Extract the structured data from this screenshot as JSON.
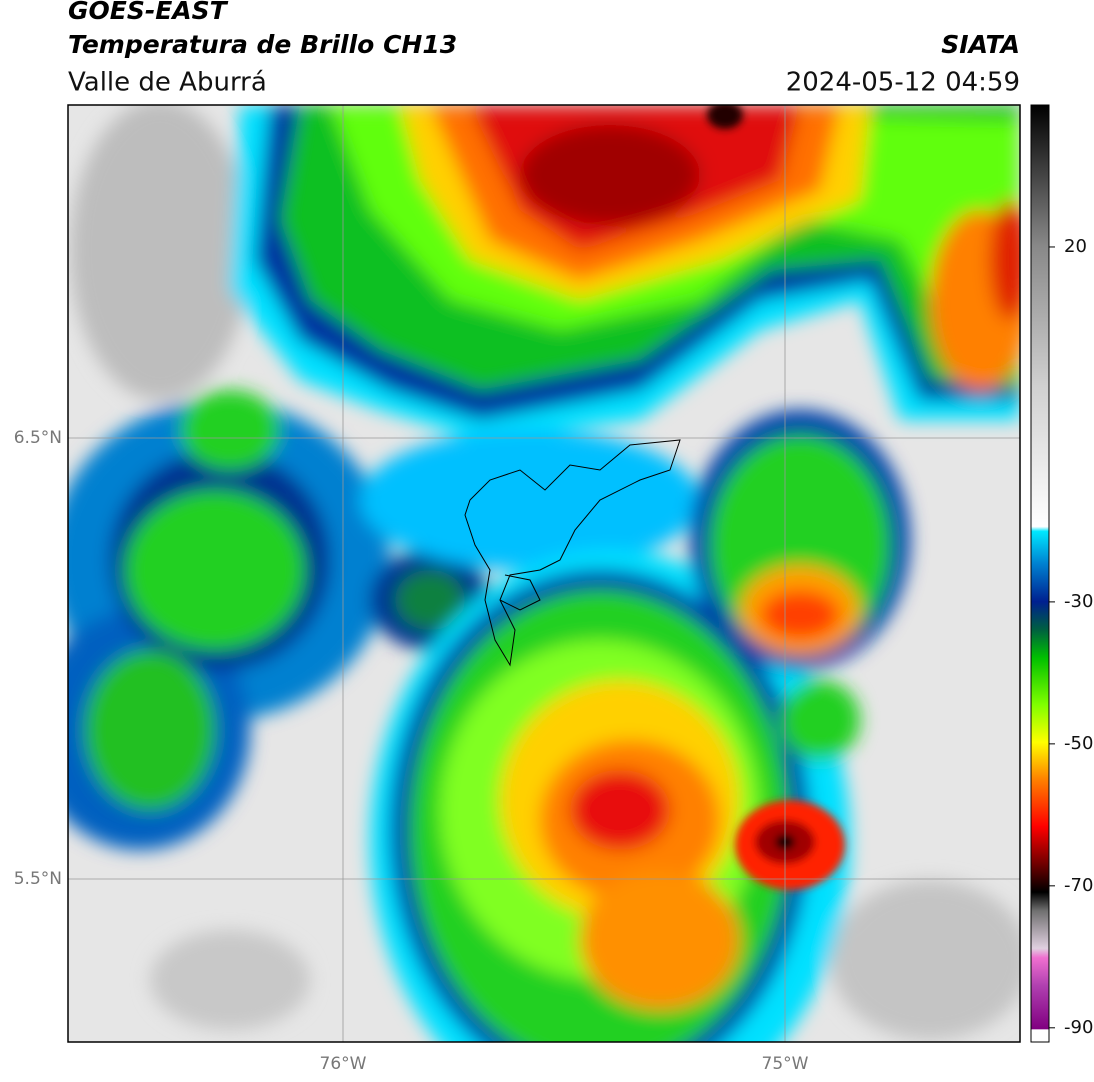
{
  "header": {
    "title": "GOES-EAST",
    "subtitle": "Temperatura de Brillo CH13",
    "source": "SIATA",
    "region": "Valle de Aburrá",
    "datetime": "2024-05-12 04:59"
  },
  "map": {
    "lat_labels": [
      "6.5°N",
      "5.5°N"
    ],
    "lon_labels": [
      "76°W",
      "75°W"
    ]
  },
  "colorbar": {
    "lim": [
      -92,
      40
    ],
    "ticks": [
      20,
      -30,
      -50,
      -70,
      -90
    ]
  }
}
